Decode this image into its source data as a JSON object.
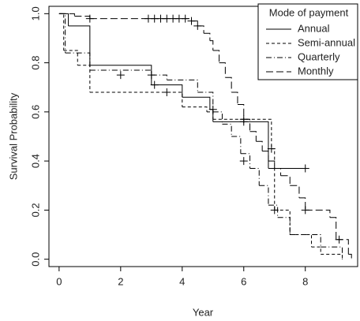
{
  "chart_data": {
    "type": "survival",
    "x_label": "Year",
    "y_label": "Survival Probability",
    "xlim": [
      -0.33,
      9.7
    ],
    "ylim": [
      -0.03,
      1.03
    ],
    "xticks": [
      0,
      2,
      4,
      6,
      8
    ],
    "yticks": [
      {
        "value": 0,
        "label": "0.0"
      },
      0.2,
      0.4,
      0.6,
      0.8,
      {
        "value": 1,
        "label": "1.0"
      }
    ],
    "legend_title": "Mode of payment",
    "legend_position": "top-right",
    "series": [
      {
        "name": "Annual",
        "color": "#000000",
        "dash": "none",
        "x": [
          0,
          0.3,
          1.0,
          3.0,
          4.0,
          4.9,
          5.0,
          6.8,
          8.0
        ],
        "values": [
          1.0,
          0.95,
          0.79,
          0.71,
          0.66,
          0.61,
          0.56,
          0.37,
          0.37
        ],
        "censor_x": [
          3.1,
          5.0,
          6.0,
          8.0
        ],
        "censor_values": [
          0.71,
          0.61,
          0.56,
          0.37
        ]
      },
      {
        "name": "Semi-annual",
        "color": "#000000",
        "dash": "4,3",
        "x": [
          0,
          0.15,
          0.6,
          1.0,
          4.0,
          4.8,
          5.0,
          6.9,
          7.0,
          7.5,
          8.2,
          8.5,
          9.2
        ],
        "values": [
          1.0,
          0.85,
          0.79,
          0.68,
          0.62,
          0.6,
          0.57,
          0.45,
          0.2,
          0.1,
          0.05,
          0.02,
          0.0
        ],
        "censor_x": [
          3.5,
          6.9
        ],
        "censor_values": [
          0.68,
          0.45
        ]
      },
      {
        "name": "Quarterly",
        "color": "#000000",
        "dash": "7,3,1,3",
        "x": [
          0,
          0.2,
          1.0,
          3.0,
          3.5,
          4.5,
          5.0,
          5.3,
          5.6,
          5.9,
          6.2,
          6.5,
          6.8,
          7.1,
          7.5,
          8.5,
          9.2
        ],
        "values": [
          1.0,
          0.84,
          0.77,
          0.75,
          0.73,
          0.68,
          0.6,
          0.55,
          0.5,
          0.43,
          0.37,
          0.3,
          0.22,
          0.17,
          0.1,
          0.05,
          0.0
        ],
        "censor_x": [
          2.0,
          3.0,
          6.0,
          7.0
        ],
        "censor_values": [
          0.75,
          0.75,
          0.4,
          0.2
        ]
      },
      {
        "name": "Monthly",
        "color": "#000000",
        "dash": "9,4",
        "x": [
          0,
          0.5,
          1.0,
          4.3,
          4.5,
          4.7,
          4.9,
          5.0,
          5.2,
          5.4,
          5.6,
          5.8,
          6.0,
          6.2,
          6.4,
          6.6,
          6.8,
          7.0,
          7.2,
          7.5,
          7.8,
          8.0,
          8.8,
          9.0,
          9.4,
          9.5
        ],
        "values": [
          1.0,
          0.99,
          0.98,
          0.97,
          0.95,
          0.92,
          0.89,
          0.85,
          0.8,
          0.74,
          0.68,
          0.63,
          0.57,
          0.52,
          0.48,
          0.44,
          0.4,
          0.37,
          0.34,
          0.3,
          0.25,
          0.2,
          0.17,
          0.08,
          0.02,
          0.0
        ],
        "censor_x": [
          1.0,
          2.9,
          3.1,
          3.3,
          3.5,
          3.7,
          3.9,
          4.1,
          4.3,
          4.5,
          6.0,
          8.0,
          9.1
        ],
        "censor_values": [
          0.98,
          0.98,
          0.98,
          0.98,
          0.98,
          0.98,
          0.98,
          0.98,
          0.97,
          0.95,
          0.57,
          0.2,
          0.08
        ]
      }
    ]
  }
}
